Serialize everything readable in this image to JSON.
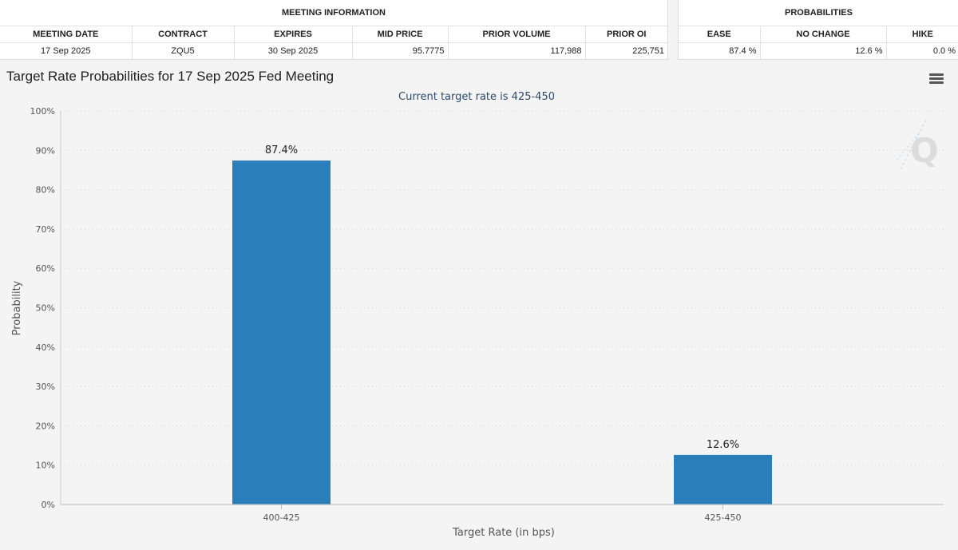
{
  "meeting_info": {
    "title": "MEETING INFORMATION",
    "headers": [
      "MEETING DATE",
      "CONTRACT",
      "EXPIRES",
      "MID PRICE",
      "PRIOR VOLUME",
      "PRIOR OI"
    ],
    "row": [
      "17 Sep 2025",
      "ZQU5",
      "30 Sep 2025",
      "95.7775",
      "117,988",
      "225,751"
    ]
  },
  "probabilities": {
    "title": "PROBABILITIES",
    "headers": [
      "EASE",
      "NO CHANGE",
      "HIKE"
    ],
    "row": [
      "87.4 %",
      "12.6 %",
      "0.0 %"
    ]
  },
  "chart": {
    "title": "Target Rate Probabilities for 17 Sep 2025 Fed Meeting",
    "menu_icon": "hamburger-menu-icon",
    "watermark_icon": "q-logo-icon",
    "bar_color": "#2a7fba"
  },
  "chart_data": {
    "type": "bar",
    "title": "Target Rate Probabilities for 17 Sep 2025 Fed Meeting",
    "subtitle": "Current target rate is 425-450",
    "categories": [
      "400-425",
      "425-450"
    ],
    "values": [
      87.4,
      12.6
    ],
    "data_labels": [
      "87.4%",
      "12.6%"
    ],
    "xlabel": "Target Rate (in bps)",
    "ylabel": "Probability",
    "ylim": [
      0,
      100
    ],
    "yticks": [
      "0%",
      "10%",
      "20%",
      "30%",
      "40%",
      "50%",
      "60%",
      "70%",
      "80%",
      "90%",
      "100%"
    ],
    "grid": true,
    "legend": "none"
  }
}
